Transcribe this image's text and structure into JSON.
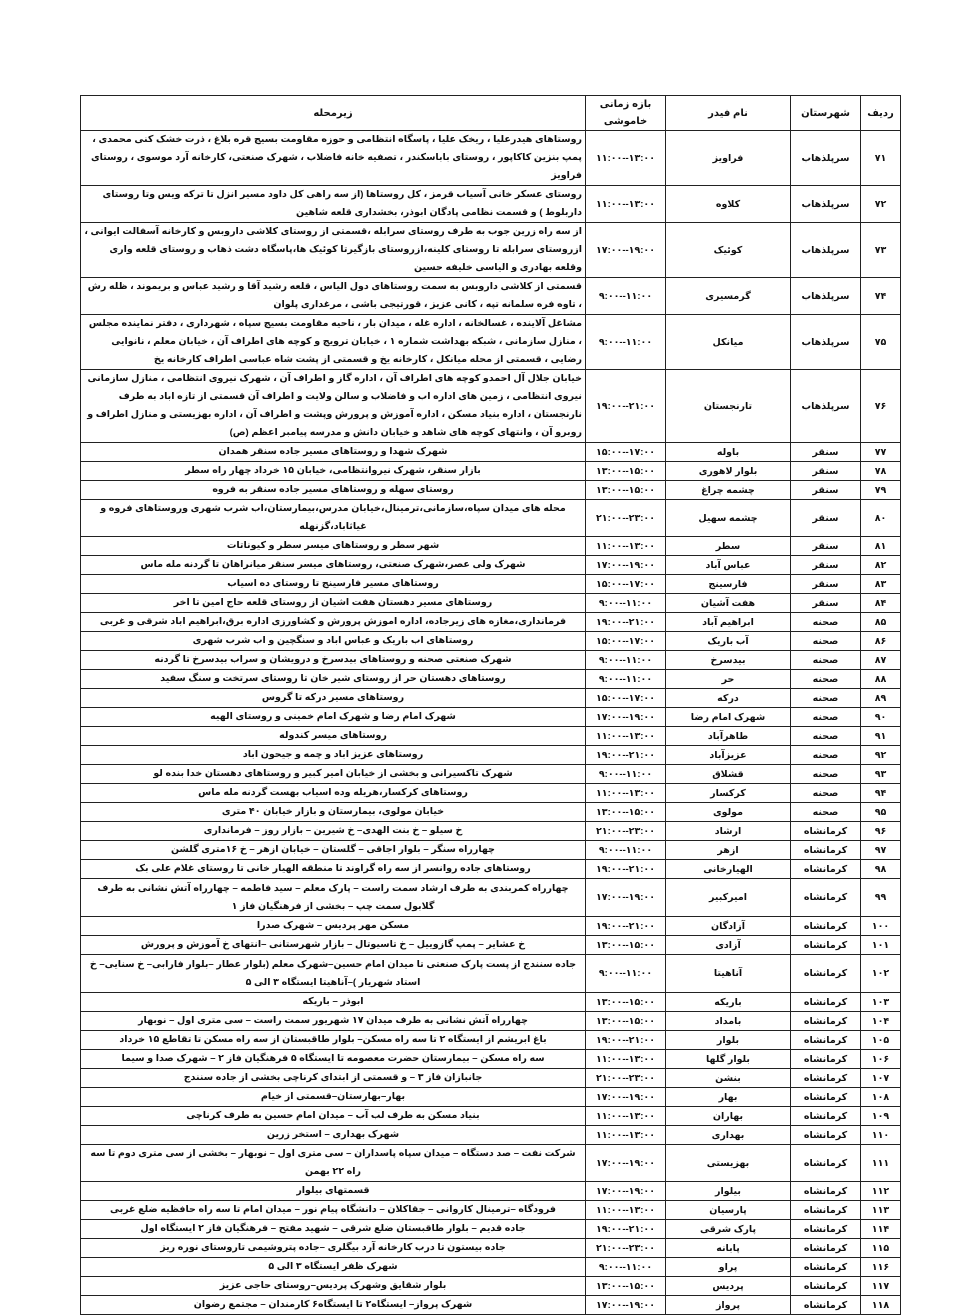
{
  "headers": {
    "row": "ردیف",
    "city": "شهرستان",
    "feeder": "نام فیدر",
    "time": "بازه زمانی خاموشی",
    "area": "زیرمحله"
  },
  "rows": [
    {
      "num": "۷۱",
      "city": "سرپلذهاب",
      "feeder": "فراویز",
      "time": "۱۱:۰۰--۱۳:۰۰",
      "area": "روستاهای هیدرعلیا ، ریخک علیا ، پاسگاه انتظامی و حوزه مقاومت بسیج قره بلاغ ، ذرت خشک کنی محمدی ، پمپ بنزین کاکاپور ، روستای باباسکندر ، تصفیه خانه فاضلاب ، شهرک صنعتی، کارخانه آرد موسوی ، روستای فراویز"
    },
    {
      "num": "۷۲",
      "city": "سرپلذهاب",
      "feeder": "کلاوه",
      "time": "۱۱:۰۰--۱۳:۰۰",
      "area": "روستای عسکر خانی آسیاب قرمز ، کل روستاها (از سه راهی کل داود مسیر انزل تا ترکه ویس وتا روستای داربلوط ) و قسمت نظامی پادگان ابوذر، بخشداری قلعه شاهین"
    },
    {
      "num": "۷۳",
      "city": "سرپلذهاب",
      "feeder": "کوئیک",
      "time": "۱۷:۰۰--۱۹:۰۰",
      "area": "از سه راه زرین جوب به طرف روستای سرابله ،قسمتی از روستای کلاشی داروبس و کارخانه آسفالت ایوانی ، ازروستای سرابله تا روستای کلینه،ازروستای بازگیرتا کوئیک ها،پاسگاه دشت ذهاب و روستای قلعه واری وقلعه بهادری و الیاسی خلیفه حسین"
    },
    {
      "num": "۷۴",
      "city": "سرپلذهاب",
      "feeder": "گرمسیری",
      "time": "۹:۰۰--۱۱:۰۰",
      "area": "قسمتی از کلاشی داروبس به سمت روستاهای دول الیاس ، قلعه رشید آقا و رشید عباس و بریموند ، ظله رش ، تاوه فره سلمانه تپه ، کانی عزیز ، قورتیجی باشی ، مرغداری پلوان"
    },
    {
      "num": "۷۵",
      "city": "سرپلذهاب",
      "feeder": "میانکل",
      "time": "۹:۰۰--۱۱:۰۰",
      "area": "مشاغل آلاینده ، غسالخانه ، اداره غله ، میدان بار ، ناحیه مقاومت بسیج سپاه ، شهرداری ، دفتر نماینده مجلس ، منازل سازمانی ، شبکه بهداشت شماره ۱ ، خیابان ترویج و کوچه های اطراف آن ، خیابان معلم ، نانوایی رضایی ، قسمتی از محله میانکل ، کارخانه یخ و قسمتی از پشت شاه عباسی اطراف کارخانه یخ"
    },
    {
      "num": "۷۶",
      "city": "سرپلذهاب",
      "feeder": "تارنجستان",
      "time": "۱۹:۰۰--۲۱:۰۰",
      "area": "خیابان جلال آل احمدو کوچه های اطراف آن ، اداره گاز و اطراف آن ، شهرک نیروی انتظامی ، منازل سازمانی نیروی انتظامی ، زمین های اداره اب و فاضلاب و سالن ولایت و اطراف آن قسمتی از تازه اباد به طرف نارنجستان ، اداره بنیاد مسکن ، اداره آموزش و پرورش وپشت و اطراف آن ، اداره بهزیستی و منازل اطراف و روبرو آن ، وانتهای کوچه های شاهد و خیابان دانش و مدرسه پیامبر اعظم (ص)"
    },
    {
      "num": "۷۷",
      "city": "سنقر",
      "feeder": "باوله",
      "time": "۱۵:۰۰--۱۷:۰۰",
      "area": "شهرک شهدا و روستاهای مسیر جاده سنقر همدان"
    },
    {
      "num": "۷۸",
      "city": "سنقر",
      "feeder": "بلوار لاهوری",
      "time": "۱۳:۰۰--۱۵:۰۰",
      "area": "بازار سنقر، شهرک نیروانتظامی، خیابان ۱۵ خرداد چهار راه سطر"
    },
    {
      "num": "۷۹",
      "city": "سنقر",
      "feeder": "چشمه چراغ",
      "time": "۱۳:۰۰--۱۵:۰۰",
      "area": "روستای سهله و روستاهای مسیر جاده سنقر به فروه"
    },
    {
      "num": "۸۰",
      "city": "سنقر",
      "feeder": "چشمه سهیل",
      "time": "۲۱:۰۰--۲۳:۰۰",
      "area": "محله های میدان سپاه،سازمانی،ترمینال،خیابان مدرس،بیمارستان،اب شرب شهری وروستاهای فروه و غیاثاباد،گزنهله"
    },
    {
      "num": "۸۱",
      "city": "سنقر",
      "feeder": "سطر",
      "time": "۱۱:۰۰--۱۳:۰۰",
      "area": "شهر سطر و روستاهای میسر سطر و کیوناتات"
    },
    {
      "num": "۸۲",
      "city": "سنقر",
      "feeder": "عباس آباد",
      "time": "۱۷:۰۰--۱۹:۰۰",
      "area": "شهرک ولی عصر،شهرک صنعتی، روستاهای میسر سنقر میانراهان تا گردنه مله ماس"
    },
    {
      "num": "۸۳",
      "city": "سنقر",
      "feeder": "فارسینج",
      "time": "۱۵:۰۰--۱۷:۰۰",
      "area": "روستاهای مسیر فارسینج تا روستای ده اسیاب"
    },
    {
      "num": "۸۴",
      "city": "سنقر",
      "feeder": "هفت آشیان",
      "time": "۹:۰۰--۱۱:۰۰",
      "area": "روستاهای مسیر دهستان هفت اشیان از روستای قلعه حاج امین تا اخر"
    },
    {
      "num": "۸۵",
      "city": "صحنه",
      "feeder": "ابراهیم آباد",
      "time": "۱۹:۰۰--۲۱:۰۰",
      "area": "فرمانداری،مغازه های زیرجاده، اداره اموزش پرورش و کشاورزی اداره برق،ابراهیم اباد شرقی و غربی"
    },
    {
      "num": "۸۶",
      "city": "صحنه",
      "feeder": "آب باریک",
      "time": "۱۵:۰۰--۱۷:۰۰",
      "area": "روستاهای اب باریک و عباس اباد و سنگچین و اب شرب شهری"
    },
    {
      "num": "۸۷",
      "city": "صحنه",
      "feeder": "بیدسرخ",
      "time": "۹:۰۰--۱۱:۰۰",
      "area": "شهرک صنعتی صحنه و روستاهای بیدسرخ و درویشان و سراب بیدسرخ تا گردنه"
    },
    {
      "num": "۸۸",
      "city": "صحنه",
      "feeder": "حر",
      "time": "۹:۰۰--۱۱:۰۰",
      "area": "روستاهای دهستان حر از روستای شیر خان تا روستای سرتخت و سنگ سفید"
    },
    {
      "num": "۸۹",
      "city": "صحنه",
      "feeder": "درکه",
      "time": "۱۵:۰۰--۱۷:۰۰",
      "area": "روستاهای مسیر درکه تا گروس"
    },
    {
      "num": "۹۰",
      "city": "صحنه",
      "feeder": "شهرک امام رضا",
      "time": "۱۷:۰۰--۱۹:۰۰",
      "area": "شهرک امام رضا و شهرک امام خمینی و روستای الهیه"
    },
    {
      "num": "۹۱",
      "city": "صحنه",
      "feeder": "طاهرآباد",
      "time": "۱۱:۰۰--۱۳:۰۰",
      "area": "روستاهای میسر کندوله"
    },
    {
      "num": "۹۲",
      "city": "صحنه",
      "feeder": "عزیزآباد",
      "time": "۱۹:۰۰--۲۱:۰۰",
      "area": "روستاهای عزیز اباد و چمه و جیحون اباد"
    },
    {
      "num": "۹۳",
      "city": "صحنه",
      "feeder": "قشلاق",
      "time": "۹:۰۰--۱۱:۰۰",
      "area": "شهرک تاکسیرانی و بخشی از خیابان امیر کبیر و روستاهای دهستان خدا بنده لو"
    },
    {
      "num": "۹۴",
      "city": "صحنه",
      "feeder": "کرکسار",
      "time": "۱۱:۰۰--۱۳:۰۰",
      "area": "روستاهای کرکسار،هریله وده اسیاب بهست گردنه مله ماس"
    },
    {
      "num": "۹۵",
      "city": "صحنه",
      "feeder": "مولوی",
      "time": "۱۳:۰۰--۱۵:۰۰",
      "area": "خیابان مولوی، بیمارستان و بازار خیابان ۴۰ متری"
    },
    {
      "num": "۹۶",
      "city": "کرمانشاه",
      "feeder": "ارشاد",
      "time": "۲۱:۰۰--۲۳:۰۰",
      "area": "خ سیلو – خ بنت الهدی– خ شیرین – بازار روز – فرمانداری"
    },
    {
      "num": "۹۷",
      "city": "کرمانشاه",
      "feeder": "ازهر",
      "time": "۹:۰۰--۱۱:۰۰",
      "area": "چهارراه سنگر – بلوار اجاقی – گلستان – خیابان ازهر – خ ۱۶متری گلشن"
    },
    {
      "num": "۹۸",
      "city": "کرمانشاه",
      "feeder": "الهیارخانی",
      "time": "۱۹:۰۰--۲۱:۰۰",
      "area": "روستاهای جاده روانسر از سه راه گراوند تا منطقه الهیار خانی تا روستای غلام علی بک"
    },
    {
      "num": "۹۹",
      "city": "کرمانشاه",
      "feeder": "امیرکبیر",
      "time": "۱۷:۰۰--۱۹:۰۰",
      "area": "چهارراه کمربندی به طرف ارشاد سمت راست – پارک معلم – سید فاطمه – چهارراه آتش نشانی به طرف گلابول سمت چپ – بخشی از فرهنگیان فاز ۱"
    },
    {
      "num": "۱۰۰",
      "city": "کرمانشاه",
      "feeder": "آزادگان",
      "time": "۱۹:۰۰--۲۱:۰۰",
      "area": "مسکن مهر پردیس – شهرک صدرا"
    },
    {
      "num": "۱۰۱",
      "city": "کرمانشاه",
      "feeder": "آزادی",
      "time": "۱۳:۰۰--۱۵:۰۰",
      "area": "خ عشایر – پمپ گازوییل – خ تاسیوتال – بازار شهرستانی –انتهای خ آموزش و پرورش"
    },
    {
      "num": "۱۰۲",
      "city": "کرمانشاه",
      "feeder": "آناهیتا",
      "time": "۹:۰۰--۱۱:۰۰",
      "area": "جاده سنندج از پست پارک صنعتی تا میدان امام حسین–شهرک معلم (بلوار عطار –بلوار فارابی– خ سنایی– خ استاد شهریار )–آناهیتا ایستگاه ۳ الی ۵"
    },
    {
      "num": "۱۰۳",
      "city": "کرمانشاه",
      "feeder": "باریکه",
      "time": "۱۳:۰۰--۱۵:۰۰",
      "area": "ابوذر – باریکه"
    },
    {
      "num": "۱۰۴",
      "city": "کرمانشاه",
      "feeder": "بامداد",
      "time": "۱۳:۰۰--۱۵:۰۰",
      "area": "چهارراه آتش نشانی به طرف میدان ۱۷ شهریور سمت راست – سی متری اول – نوبهار"
    },
    {
      "num": "۱۰۵",
      "city": "کرمانشاه",
      "feeder": "بلوار",
      "time": "۱۹:۰۰--۲۱:۰۰",
      "area": "باغ ابریشم از ایستگاه ۲ تا سه راه مسکن– بلوار طاقبستان از سه راه مسکن تا تقاطع ۱۵ خرداد"
    },
    {
      "num": "۱۰۶",
      "city": "کرمانشاه",
      "feeder": "بلوار گلها",
      "time": "۱۱:۰۰--۱۳:۰۰",
      "area": "سه راه مسکن – بیمارستان حضرت معصومه تا ایستگاه ۵ فرهنگیان فاز ۲ – شهرک صدا و سیما"
    },
    {
      "num": "۱۰۷",
      "city": "کرمانشاه",
      "feeder": "بنشن",
      "time": "۲۱:۰۰--۲۳:۰۰",
      "area": "جانبازان فاز ۳ – و قسمتی از ابتدای کرناچی بخشی از جاده سنندج"
    },
    {
      "num": "۱۰۸",
      "city": "کرمانشاه",
      "feeder": "بهار",
      "time": "۱۷:۰۰--۱۹:۰۰",
      "area": "بهار–بهارستان–قسمتی از خیام"
    },
    {
      "num": "۱۰۹",
      "city": "کرمانشاه",
      "feeder": "بهاران",
      "time": "۱۱:۰۰--۱۳:۰۰",
      "area": "بنیاد مسکن به طرف لب آب – میدان امام حسین به طرف کرناچی"
    },
    {
      "num": "۱۱۰",
      "city": "کرمانشاه",
      "feeder": "بهداری",
      "time": "۱۱:۰۰--۱۳:۰۰",
      "area": "شهرک بهداری – استخر زرین"
    },
    {
      "num": "۱۱۱",
      "city": "کرمانشاه",
      "feeder": "بهزیستی",
      "time": "۱۷:۰۰--۱۹:۰۰",
      "area": "شرکت نفت – صد دستگاه – میدان سپاه پاسداران – سی متری اول – نوبهار – بخشی از سی متری دوم تا سه راه ۲۲ بهمن"
    },
    {
      "num": "۱۱۲",
      "city": "کرمانشاه",
      "feeder": "بیلوار",
      "time": "۱۷:۰۰--۱۹:۰۰",
      "area": "قسمتهای بیلوار"
    },
    {
      "num": "۱۱۳",
      "city": "کرمانشاه",
      "feeder": "پارسیان",
      "time": "۱۱:۰۰--۱۳:۰۰",
      "area": "فرودگاه –ترمینال کاروانی – جقاکلان – دانشگاه پیام نور – میدان امام تا سه راه حافظیه ضلع غربی"
    },
    {
      "num": "۱۱۴",
      "city": "کرمانشاه",
      "feeder": "پارک شرقی",
      "time": "۱۹:۰۰--۲۱:۰۰",
      "area": "جاده قدیم – بلوار طاقبستان ضلع شرقی – شهید مفتح – فرهنگیان فاز ۲ ایستگاه اول"
    },
    {
      "num": "۱۱۵",
      "city": "کرمانشاه",
      "feeder": "پابانه",
      "time": "۲۱:۰۰--۲۳:۰۰",
      "area": "جاده بیستون تا درب کارخانه آرد بیگلری –جاده پتروشیمی تاروستای نوره ریز"
    },
    {
      "num": "۱۱۶",
      "city": "کرمانشاه",
      "feeder": "پراو",
      "time": "۹:۰۰--۱۱:۰۰",
      "area": "شهرک ظفر ایستگاه ۳ الی ۵"
    },
    {
      "num": "۱۱۷",
      "city": "کرمانشاه",
      "feeder": "پردیس",
      "time": "۱۳:۰۰--۱۵:۰۰",
      "area": "بلوار شقایق وشهرک پردیس–روستای حاجی عزیز"
    },
    {
      "num": "۱۱۸",
      "city": "کرمانشاه",
      "feeder": "پرواز",
      "time": "۱۷:۰۰--۱۹:۰۰",
      "area": "شهرک پرواز– ایستگاه۲ تا ایستگاه۶ کارمندان – مجتمع رضوان"
    }
  ]
}
